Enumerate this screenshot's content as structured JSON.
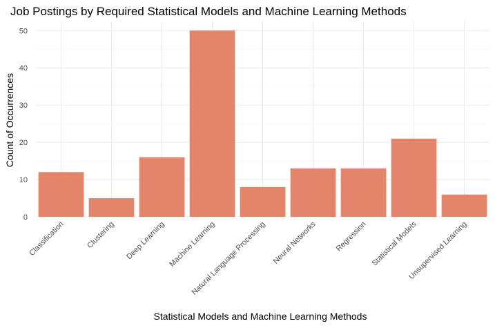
{
  "chart_data": {
    "type": "bar",
    "title": "Job Postings by Required Statistical Models and Machine Learning Methods",
    "xlabel": "Statistical Models and Machine Learning Methods",
    "ylabel": "Count of Occurrences",
    "categories": [
      "Classification",
      "Clustering",
      "Deep Learning",
      "Machine Learning",
      "Natural Language Processing",
      "Neural Networks",
      "Regression",
      "Statistical Models",
      "Unsupervised Learning"
    ],
    "values": [
      12,
      5,
      16,
      50,
      8,
      13,
      13,
      21,
      6
    ],
    "ylim": [
      0,
      52
    ],
    "yticks": [
      0,
      10,
      20,
      30,
      40,
      50
    ],
    "grid": true,
    "bar_color": "#e3856a",
    "legend": "none"
  }
}
